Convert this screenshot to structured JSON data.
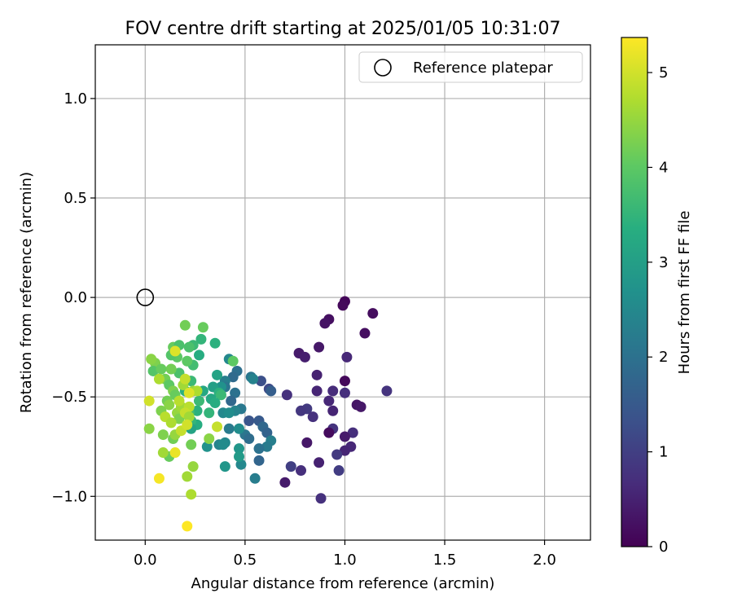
{
  "chart_data": {
    "type": "scatter",
    "title": "FOV centre drift starting at 2025/01/05 10:31:07",
    "xlabel": "Angular distance from reference (arcmin)",
    "ylabel": "Rotation from reference (arcmin)",
    "xlim": [
      -0.25,
      2.23
    ],
    "ylim": [
      -1.22,
      1.27
    ],
    "xticks": [
      0.0,
      0.5,
      1.0,
      1.5,
      2.0
    ],
    "xtick_labels": [
      "0.0",
      "0.5",
      "1.0",
      "1.5",
      "2.0"
    ],
    "yticks": [
      -1.0,
      -0.5,
      0.0,
      0.5,
      1.0
    ],
    "ytick_labels": [
      "−1.0",
      "−0.5",
      "0.0",
      "0.5",
      "1.0"
    ],
    "grid": true,
    "legend": {
      "position": "top-right",
      "label": "Reference platepar"
    },
    "reference_point": {
      "x": 0.0,
      "y": 0.0
    },
    "colorbar": {
      "label": "Hours from first FF file",
      "colormap": "viridis",
      "range": [
        0,
        5.37
      ],
      "ticks": [
        0,
        1,
        2,
        3,
        4,
        5
      ],
      "tick_labels": [
        "0",
        "1",
        "2",
        "3",
        "4",
        "5"
      ]
    },
    "points": [
      {
        "x": 1.0,
        "y": -0.02,
        "h": 0.08
      },
      {
        "x": 0.99,
        "y": -0.04,
        "h": 0.12
      },
      {
        "x": 1.14,
        "y": -0.08,
        "h": 0.18
      },
      {
        "x": 0.92,
        "y": -0.11,
        "h": 0.22
      },
      {
        "x": 0.9,
        "y": -0.13,
        "h": 0.28
      },
      {
        "x": 1.1,
        "y": -0.18,
        "h": 0.2
      },
      {
        "x": 0.87,
        "y": -0.25,
        "h": 0.35
      },
      {
        "x": 0.77,
        "y": -0.28,
        "h": 0.4
      },
      {
        "x": 0.8,
        "y": -0.3,
        "h": 0.45
      },
      {
        "x": 1.01,
        "y": -0.3,
        "h": 0.6
      },
      {
        "x": 0.86,
        "y": -0.39,
        "h": 0.5
      },
      {
        "x": 1.0,
        "y": -0.42,
        "h": 0.1
      },
      {
        "x": 1.21,
        "y": -0.47,
        "h": 0.8
      },
      {
        "x": 0.86,
        "y": -0.47,
        "h": 0.55
      },
      {
        "x": 0.94,
        "y": -0.47,
        "h": 0.65
      },
      {
        "x": 1.0,
        "y": -0.48,
        "h": 0.7
      },
      {
        "x": 0.71,
        "y": -0.49,
        "h": 0.75
      },
      {
        "x": 0.92,
        "y": -0.52,
        "h": 0.6
      },
      {
        "x": 1.06,
        "y": -0.54,
        "h": 0.3
      },
      {
        "x": 1.08,
        "y": -0.55,
        "h": 0.35
      },
      {
        "x": 0.81,
        "y": -0.56,
        "h": 0.9
      },
      {
        "x": 0.78,
        "y": -0.57,
        "h": 0.85
      },
      {
        "x": 0.94,
        "y": -0.57,
        "h": 0.55
      },
      {
        "x": 0.84,
        "y": -0.6,
        "h": 0.75
      },
      {
        "x": 0.94,
        "y": -0.66,
        "h": 0.8
      },
      {
        "x": 1.04,
        "y": -0.68,
        "h": 0.7
      },
      {
        "x": 0.92,
        "y": -0.68,
        "h": 0.15
      },
      {
        "x": 1.0,
        "y": -0.7,
        "h": 0.4
      },
      {
        "x": 0.81,
        "y": -0.73,
        "h": 0.35
      },
      {
        "x": 1.03,
        "y": -0.75,
        "h": 0.6
      },
      {
        "x": 1.0,
        "y": -0.77,
        "h": 0.55
      },
      {
        "x": 0.96,
        "y": -0.79,
        "h": 0.9
      },
      {
        "x": 0.87,
        "y": -0.83,
        "h": 0.5
      },
      {
        "x": 0.73,
        "y": -0.85,
        "h": 1.0
      },
      {
        "x": 0.78,
        "y": -0.87,
        "h": 0.7
      },
      {
        "x": 0.97,
        "y": -0.87,
        "h": 0.95
      },
      {
        "x": 0.7,
        "y": -0.93,
        "h": 0.4
      },
      {
        "x": 0.88,
        "y": -1.01,
        "h": 0.75
      },
      {
        "x": 0.58,
        "y": -0.42,
        "h": 1.3
      },
      {
        "x": 0.62,
        "y": -0.46,
        "h": 1.2
      },
      {
        "x": 0.63,
        "y": -0.47,
        "h": 1.6
      },
      {
        "x": 0.52,
        "y": -0.62,
        "h": 1.4
      },
      {
        "x": 0.57,
        "y": -0.62,
        "h": 1.5
      },
      {
        "x": 0.59,
        "y": -0.65,
        "h": 1.8
      },
      {
        "x": 0.61,
        "y": -0.68,
        "h": 1.7
      },
      {
        "x": 0.5,
        "y": -0.69,
        "h": 2.1
      },
      {
        "x": 0.52,
        "y": -0.71,
        "h": 1.9
      },
      {
        "x": 0.63,
        "y": -0.72,
        "h": 2.3
      },
      {
        "x": 0.61,
        "y": -0.75,
        "h": 2.2
      },
      {
        "x": 0.57,
        "y": -0.76,
        "h": 2.0
      },
      {
        "x": 0.57,
        "y": -0.82,
        "h": 1.75
      },
      {
        "x": 0.48,
        "y": -0.84,
        "h": 2.5
      },
      {
        "x": 0.55,
        "y": -0.91,
        "h": 2.25
      },
      {
        "x": 0.53,
        "y": -0.4,
        "h": 2.1
      },
      {
        "x": 0.54,
        "y": -0.41,
        "h": 2.35
      },
      {
        "x": 0.46,
        "y": -0.37,
        "h": 1.95
      },
      {
        "x": 0.44,
        "y": -0.4,
        "h": 1.85
      },
      {
        "x": 0.45,
        "y": -0.48,
        "h": 2.0
      },
      {
        "x": 0.43,
        "y": -0.52,
        "h": 1.8
      },
      {
        "x": 0.48,
        "y": -0.56,
        "h": 2.15
      },
      {
        "x": 0.45,
        "y": -0.57,
        "h": 2.4
      },
      {
        "x": 0.42,
        "y": -0.66,
        "h": 2.2
      },
      {
        "x": 0.47,
        "y": -0.66,
        "h": 2.6
      },
      {
        "x": 0.47,
        "y": -0.76,
        "h": 2.8
      },
      {
        "x": 0.47,
        "y": -0.8,
        "h": 2.9
      },
      {
        "x": 0.4,
        "y": -0.42,
        "h": 2.3
      },
      {
        "x": 0.4,
        "y": -0.45,
        "h": 2.1
      },
      {
        "x": 0.38,
        "y": -0.45,
        "h": 2.7
      },
      {
        "x": 0.42,
        "y": -0.31,
        "h": 2.5
      },
      {
        "x": 0.39,
        "y": -0.58,
        "h": 2.5
      },
      {
        "x": 0.42,
        "y": -0.58,
        "h": 2.6
      },
      {
        "x": 0.37,
        "y": -0.74,
        "h": 2.4
      },
      {
        "x": 0.4,
        "y": -0.73,
        "h": 2.5
      },
      {
        "x": 0.39,
        "y": -0.74,
        "h": 2.55
      },
      {
        "x": 0.4,
        "y": -0.85,
        "h": 2.8
      },
      {
        "x": 0.31,
        "y": -0.75,
        "h": 2.7
      },
      {
        "x": 0.36,
        "y": -0.39,
        "h": 3.1
      },
      {
        "x": 0.34,
        "y": -0.45,
        "h": 3.0
      },
      {
        "x": 0.37,
        "y": -0.48,
        "h": 3.4
      },
      {
        "x": 0.38,
        "y": -0.49,
        "h": 3.6
      },
      {
        "x": 0.33,
        "y": -0.51,
        "h": 3.2
      },
      {
        "x": 0.35,
        "y": -0.53,
        "h": 3.3
      },
      {
        "x": 0.32,
        "y": -0.58,
        "h": 3.5
      },
      {
        "x": 0.26,
        "y": -0.64,
        "h": 3.3
      },
      {
        "x": 0.26,
        "y": -0.57,
        "h": 3.4
      },
      {
        "x": 0.27,
        "y": -0.52,
        "h": 3.6
      },
      {
        "x": 0.29,
        "y": -0.47,
        "h": 3.2
      },
      {
        "x": 0.28,
        "y": -0.21,
        "h": 3.5
      },
      {
        "x": 0.27,
        "y": -0.29,
        "h": 3.3
      },
      {
        "x": 0.35,
        "y": -0.23,
        "h": 3.4
      },
      {
        "x": 0.24,
        "y": -0.24,
        "h": 3.6
      },
      {
        "x": 0.22,
        "y": -0.25,
        "h": 3.8
      },
      {
        "x": 0.24,
        "y": -0.34,
        "h": 3.7
      },
      {
        "x": 0.23,
        "y": -0.42,
        "h": 3.6
      },
      {
        "x": 0.2,
        "y": -0.47,
        "h": 3.4
      },
      {
        "x": 0.23,
        "y": -0.62,
        "h": 3.5
      },
      {
        "x": 0.23,
        "y": -0.66,
        "h": 3.1
      },
      {
        "x": 0.22,
        "y": -0.58,
        "h": 3.7
      },
      {
        "x": 0.29,
        "y": -0.15,
        "h": 4.1
      },
      {
        "x": 0.2,
        "y": -0.14,
        "h": 4.2
      },
      {
        "x": 0.44,
        "y": -0.32,
        "h": 4.0
      },
      {
        "x": 0.21,
        "y": -0.32,
        "h": 4.0
      },
      {
        "x": 0.14,
        "y": -0.25,
        "h": 4.1
      },
      {
        "x": 0.17,
        "y": -0.24,
        "h": 3.8
      },
      {
        "x": 0.16,
        "y": -0.3,
        "h": 4.0
      },
      {
        "x": 0.13,
        "y": -0.29,
        "h": 3.9
      },
      {
        "x": 0.17,
        "y": -0.38,
        "h": 3.8
      },
      {
        "x": 0.13,
        "y": -0.36,
        "h": 4.2
      },
      {
        "x": 0.05,
        "y": -0.33,
        "h": 4.3
      },
      {
        "x": 0.04,
        "y": -0.37,
        "h": 3.9
      },
      {
        "x": 0.08,
        "y": -0.36,
        "h": 4.1
      },
      {
        "x": 0.1,
        "y": -0.41,
        "h": 4.2
      },
      {
        "x": 0.12,
        "y": -0.44,
        "h": 4.0
      },
      {
        "x": 0.14,
        "y": -0.47,
        "h": 4.3
      },
      {
        "x": 0.15,
        "y": -0.49,
        "h": 4.1
      },
      {
        "x": 0.11,
        "y": -0.52,
        "h": 4.2
      },
      {
        "x": 0.12,
        "y": -0.54,
        "h": 4.4
      },
      {
        "x": 0.16,
        "y": -0.58,
        "h": 4.5
      },
      {
        "x": 0.17,
        "y": -0.61,
        "h": 4.3
      },
      {
        "x": 0.18,
        "y": -0.55,
        "h": 4.6
      },
      {
        "x": 0.24,
        "y": -0.47,
        "h": 4.5
      },
      {
        "x": 0.23,
        "y": -0.74,
        "h": 4.2
      },
      {
        "x": 0.32,
        "y": -0.71,
        "h": 4.4
      },
      {
        "x": 0.08,
        "y": -0.57,
        "h": 4.3
      },
      {
        "x": 0.02,
        "y": -0.66,
        "h": 4.4
      },
      {
        "x": 0.09,
        "y": -0.69,
        "h": 4.3
      },
      {
        "x": 0.14,
        "y": -0.71,
        "h": 4.2
      },
      {
        "x": 0.15,
        "y": -0.69,
        "h": 4.5
      },
      {
        "x": 0.12,
        "y": -0.8,
        "h": 4.1
      },
      {
        "x": 0.09,
        "y": -0.78,
        "h": 4.6
      },
      {
        "x": 0.24,
        "y": -0.85,
        "h": 4.5
      },
      {
        "x": 0.21,
        "y": -0.9,
        "h": 4.6
      },
      {
        "x": 0.23,
        "y": -0.99,
        "h": 4.7
      },
      {
        "x": 0.03,
        "y": -0.31,
        "h": 4.4
      },
      {
        "x": 0.07,
        "y": -0.41,
        "h": 4.7
      },
      {
        "x": 0.1,
        "y": -0.6,
        "h": 4.8
      },
      {
        "x": 0.13,
        "y": -0.63,
        "h": 4.7
      },
      {
        "x": 0.17,
        "y": -0.52,
        "h": 4.8
      },
      {
        "x": 0.19,
        "y": -0.44,
        "h": 4.6
      },
      {
        "x": 0.2,
        "y": -0.41,
        "h": 4.9
      },
      {
        "x": 0.26,
        "y": -0.47,
        "h": 4.7
      },
      {
        "x": 0.22,
        "y": -0.55,
        "h": 4.8
      },
      {
        "x": 0.2,
        "y": -0.58,
        "h": 4.9
      },
      {
        "x": 0.22,
        "y": -0.6,
        "h": 4.6
      },
      {
        "x": 0.18,
        "y": -0.67,
        "h": 4.9
      },
      {
        "x": 0.21,
        "y": -0.64,
        "h": 5.0
      },
      {
        "x": 0.36,
        "y": -0.65,
        "h": 4.9
      },
      {
        "x": 0.02,
        "y": -0.52,
        "h": 5.0
      },
      {
        "x": 0.15,
        "y": -0.27,
        "h": 5.1
      },
      {
        "x": 0.22,
        "y": -0.48,
        "h": 5.1
      },
      {
        "x": 0.15,
        "y": -0.78,
        "h": 5.2
      },
      {
        "x": 0.07,
        "y": -0.91,
        "h": 5.3
      },
      {
        "x": 0.21,
        "y": -1.15,
        "h": 5.37
      }
    ]
  }
}
